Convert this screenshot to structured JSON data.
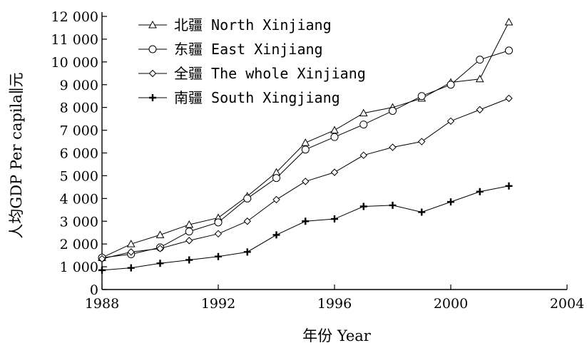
{
  "chart_data": {
    "type": "line",
    "xlabel": "年份 Year",
    "ylabel": "人均GDP Per capila∥元",
    "xlim": [
      1988,
      2004
    ],
    "ylim": [
      0,
      12000
    ],
    "x_ticks": [
      1988,
      1992,
      1996,
      2000,
      2004
    ],
    "y_ticks": [
      0,
      1000,
      2000,
      3000,
      4000,
      5000,
      6000,
      7000,
      8000,
      9000,
      10000,
      11000,
      12000
    ],
    "y_tick_labels": [
      "0",
      "1 000",
      "2 000",
      "3 000",
      "4 000",
      "5 000",
      "6 000",
      "7 000",
      "8 000",
      "9 000",
      "10 000",
      "11 000",
      "12 000"
    ],
    "grid": false,
    "legend_position": "top-left",
    "series": [
      {
        "name": "北疆 North Xinjiang",
        "marker": "triangle",
        "x": [
          1988,
          1989,
          1990,
          1991,
          1992,
          1993,
          1994,
          1995,
          1996,
          1997,
          1998,
          1999,
          2000,
          2001,
          2002
        ],
        "values": [
          1400,
          2000,
          2400,
          2850,
          3150,
          4100,
          5150,
          6450,
          7000,
          7750,
          8000,
          8400,
          9100,
          9250,
          11750
        ]
      },
      {
        "name": "东疆 East Xinjiang",
        "marker": "circle",
        "x": [
          1988,
          1989,
          1990,
          1991,
          1992,
          1993,
          1994,
          1995,
          1996,
          1997,
          1998,
          1999,
          2000,
          2001,
          2002
        ],
        "values": [
          1400,
          1550,
          1850,
          2550,
          2950,
          4000,
          4900,
          6150,
          6700,
          7250,
          7850,
          8500,
          9000,
          10100,
          10500
        ]
      },
      {
        "name": "全疆 The whole Xinjiang",
        "marker": "diamond",
        "x": [
          1988,
          1989,
          1990,
          1991,
          1992,
          1993,
          1994,
          1995,
          1996,
          1997,
          1998,
          1999,
          2000,
          2001,
          2002
        ],
        "values": [
          1350,
          1650,
          1800,
          2150,
          2450,
          3000,
          3950,
          4750,
          5150,
          5900,
          6250,
          6500,
          7400,
          7900,
          8400
        ]
      },
      {
        "name": "南疆 South Xingjiang",
        "marker": "plus",
        "x": [
          1988,
          1989,
          1990,
          1991,
          1992,
          1993,
          1994,
          1995,
          1996,
          1997,
          1998,
          1999,
          2000,
          2001,
          2002
        ],
        "values": [
          850,
          950,
          1150,
          1300,
          1450,
          1650,
          2400,
          3000,
          3100,
          3650,
          3700,
          3400,
          3850,
          4300,
          4550
        ]
      }
    ]
  }
}
